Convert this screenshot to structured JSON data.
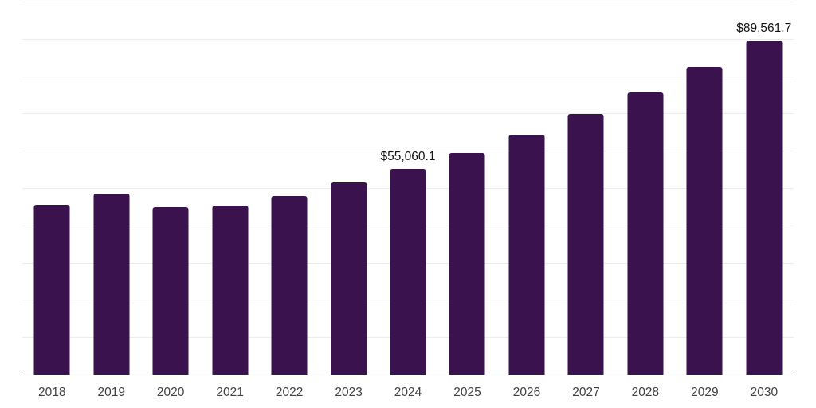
{
  "chart_data": {
    "type": "bar",
    "title": "",
    "xlabel": "",
    "ylabel": "",
    "categories": [
      "2018",
      "2019",
      "2020",
      "2021",
      "2022",
      "2023",
      "2024",
      "2025",
      "2026",
      "2027",
      "2028",
      "2029",
      "2030"
    ],
    "values": [
      45500,
      48600,
      44900,
      45400,
      47900,
      51500,
      55060.1,
      59400,
      64300,
      69800,
      75700,
      82500,
      89561.7
    ],
    "data_labels": [
      null,
      null,
      null,
      null,
      null,
      null,
      "$55,060.1",
      null,
      null,
      null,
      null,
      null,
      "$89,561.7"
    ],
    "ylim": [
      0,
      100000
    ],
    "gridline_step": 10000,
    "grid": true,
    "legend": false,
    "y_axis_tick_labels_visible": false,
    "colors": {
      "bar": "#39124e",
      "gridline": "#ececec",
      "axis": "#2e2e2e",
      "x_tick_label": "#424242",
      "value_label": "#141414",
      "background": "#ffffff"
    }
  }
}
